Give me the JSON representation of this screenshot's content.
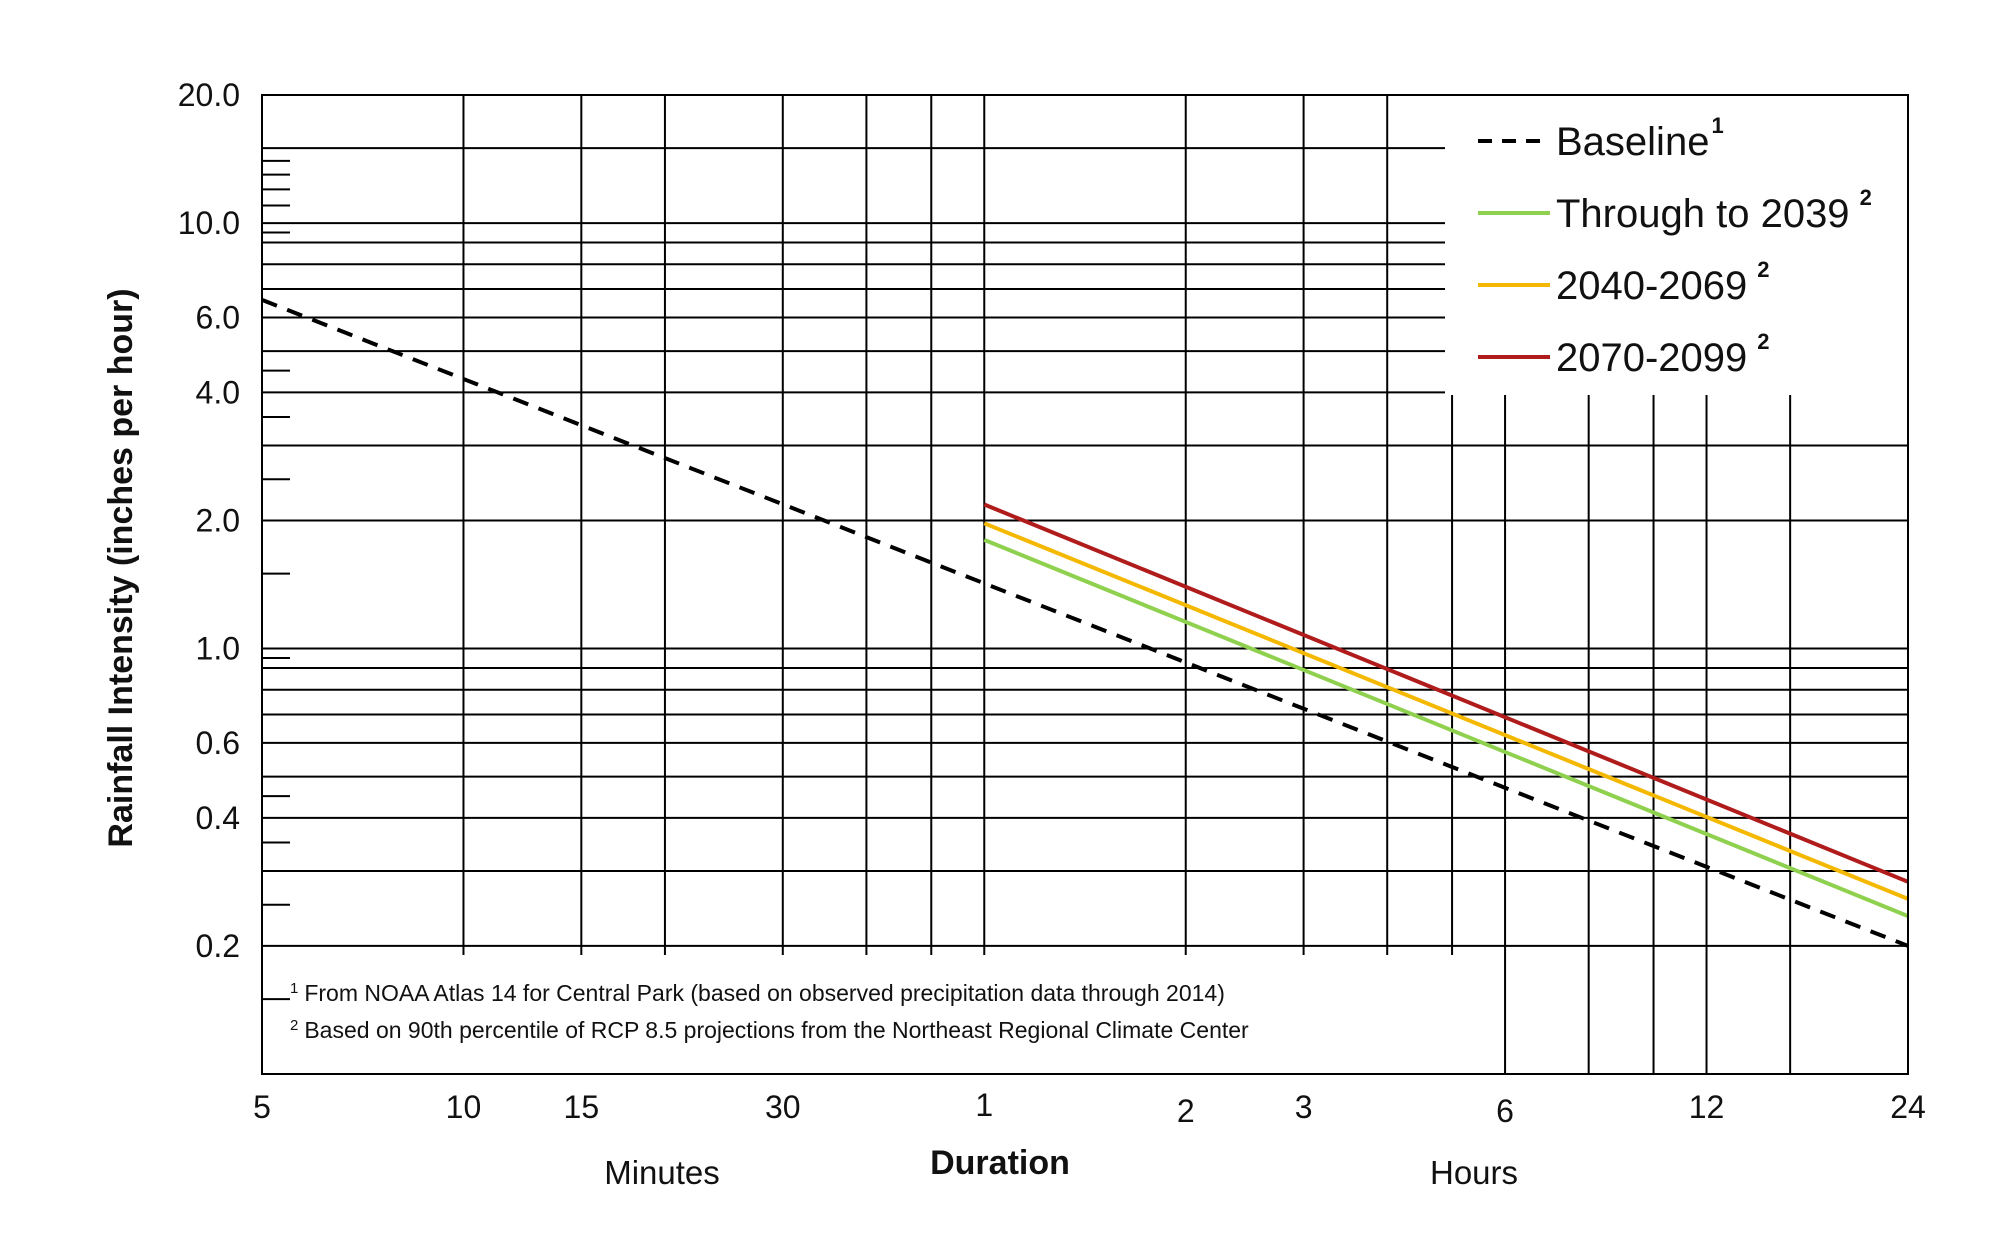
{
  "chart_data": {
    "type": "line",
    "xscale": "log",
    "yscale": "log",
    "xlabel": "Duration",
    "ylabel": "Rainfall Intensity (inches per hour)",
    "xlim": [
      5,
      1440
    ],
    "ylim": [
      0.1,
      20
    ],
    "grid": true,
    "legend_position": "top-right",
    "x_ticks": [
      {
        "value": 5,
        "label": "5"
      },
      {
        "value": 10,
        "label": "10"
      },
      {
        "value": 15,
        "label": "15"
      },
      {
        "value": 30,
        "label": "30"
      },
      {
        "value": 60,
        "label": "1"
      },
      {
        "value": 120,
        "label": "2"
      },
      {
        "value": 180,
        "label": "3"
      },
      {
        "value": 360,
        "label": "6"
      },
      {
        "value": 720,
        "label": "12"
      },
      {
        "value": 1440,
        "label": "24"
      }
    ],
    "x_group_labels": [
      "Minutes",
      "Hours"
    ],
    "y_ticks": [
      {
        "value": 20,
        "label": "20.0"
      },
      {
        "value": 10,
        "label": "10.0"
      },
      {
        "value": 6,
        "label": "6.0"
      },
      {
        "value": 4,
        "label": "4.0"
      },
      {
        "value": 2,
        "label": "2.0"
      },
      {
        "value": 1,
        "label": "1.0"
      },
      {
        "value": 0.6,
        "label": "0.6"
      },
      {
        "value": 0.4,
        "label": "0.4"
      },
      {
        "value": 0.2,
        "label": "0.2"
      }
    ],
    "series": [
      {
        "name": "Baseline",
        "legend_superscript": "1",
        "color": "#000000",
        "dashed": true,
        "x": [
          5,
          1440
        ],
        "y": [
          6.6,
          0.2
        ]
      },
      {
        "name": "Through to 2039",
        "legend_superscript": "2",
        "color": "#8fd14f",
        "dashed": false,
        "x": [
          60,
          1440
        ],
        "y": [
          1.8,
          0.235
        ]
      },
      {
        "name": "2040-2069",
        "legend_superscript": "2",
        "color": "#f5b800",
        "dashed": false,
        "x": [
          60,
          1440
        ],
        "y": [
          1.97,
          0.258
        ]
      },
      {
        "name": "2070-2099",
        "legend_superscript": "2",
        "color": "#b01c1c",
        "dashed": false,
        "x": [
          60,
          1440
        ],
        "y": [
          2.18,
          0.283
        ]
      }
    ],
    "footnotes": [
      {
        "marker": "1",
        "text": "From NOAA Atlas 14 for Central Park (based on observed precipitation data through 2014)"
      },
      {
        "marker": "2",
        "text": "Based on 90th percentile of RCP 8.5 projections from the Northeast Regional Climate Center"
      }
    ]
  }
}
